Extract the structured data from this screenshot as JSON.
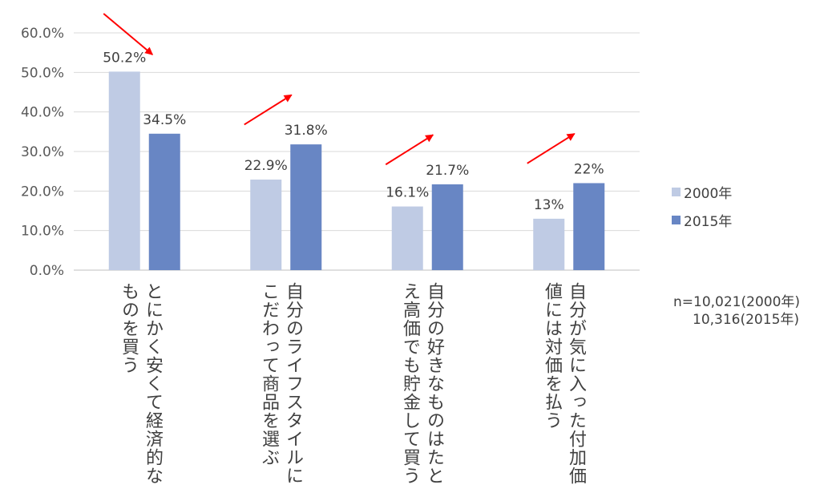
{
  "chart_data": {
    "type": "bar",
    "categories": [
      "とにかく安くて経済的なものを買う",
      "自分のライフスタイルにこだわって商品を選ぶ",
      "自分の好きなものはたとえ高価でも貯金して買う",
      "自分が気に入った付加価値には対価を払う"
    ],
    "category_lines": [
      [
        "とにかく安くて経済的な",
        "ものを買う"
      ],
      [
        "自分のライフスタイルに",
        "こだわって商品を選ぶ"
      ],
      [
        "自分の好きなものはたと",
        "え高価でも貯金して買う"
      ],
      [
        "自分が気に入った付加価",
        "値には対価を払う"
      ]
    ],
    "series": [
      {
        "name": "2000年",
        "values": [
          50.2,
          22.9,
          16.1,
          13.0
        ],
        "labels": [
          "50.2%",
          "22.9%",
          "16.1%",
          "13%"
        ],
        "color": "#bfcbe4"
      },
      {
        "name": "2015年",
        "values": [
          34.5,
          31.8,
          21.7,
          22.0
        ],
        "labels": [
          "34.5%",
          "31.8%",
          "21.7%",
          "22%"
        ],
        "color": "#6886c4"
      }
    ],
    "ylim": [
      0,
      60
    ],
    "yticks": [
      "0.0%",
      "10.0%",
      "20.0%",
      "30.0%",
      "40.0%",
      "50.0%",
      "60.0%"
    ],
    "ytick_values": [
      0,
      10,
      20,
      30,
      40,
      50,
      60
    ],
    "grid": true,
    "legend_position": "right",
    "trend_arrows": [
      "down",
      "up",
      "up",
      "up"
    ],
    "trend_arrow_color": "#ff0000",
    "note_lines": [
      "n=10,021(2000年)",
      "10,316(2015年)"
    ]
  }
}
